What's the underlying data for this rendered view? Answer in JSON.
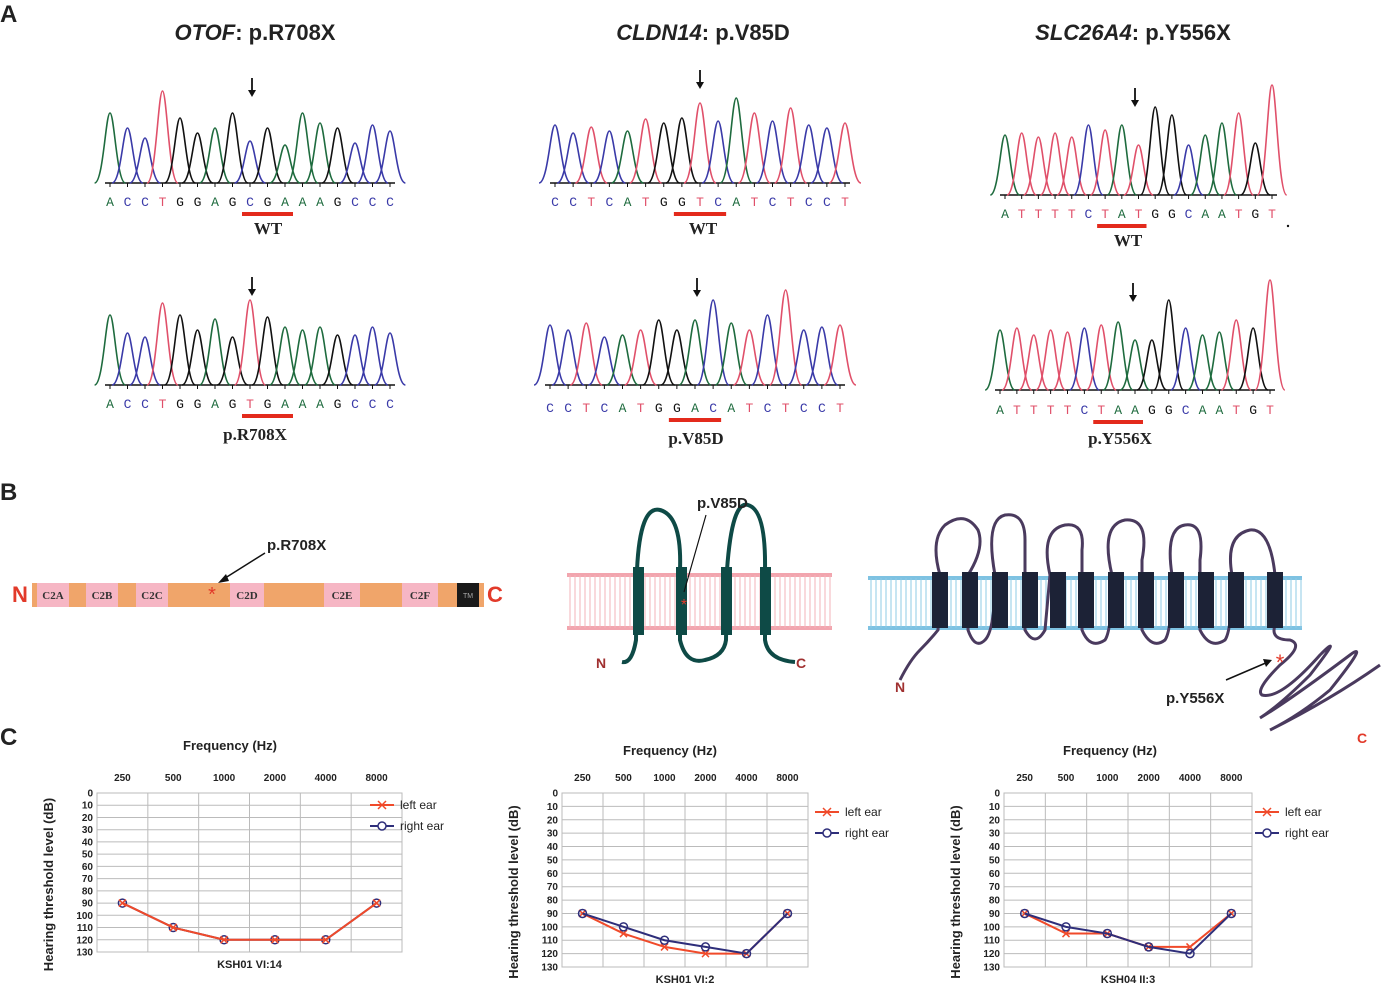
{
  "panels": {
    "a": "A",
    "b": "B",
    "c": "C"
  },
  "sequencing": [
    {
      "gene": "OTOF",
      "variant": ": p.R708X",
      "wt_seq": [
        "A",
        "C",
        "C",
        "T",
        "G",
        "G",
        "A",
        "G",
        "C",
        "G",
        "A",
        "A",
        "A",
        "G",
        "C",
        "C",
        "C"
      ],
      "wt_label": "WT",
      "mut_seq": [
        "A",
        "C",
        "C",
        "T",
        "G",
        "G",
        "A",
        "G",
        "T",
        "G",
        "A",
        "A",
        "A",
        "G",
        "C",
        "C",
        "C"
      ],
      "mut_label": "p.R708X"
    },
    {
      "gene": "CLDN14",
      "variant": ": p.V85D",
      "wt_seq": [
        "C",
        "C",
        "T",
        "C",
        "A",
        "T",
        "G",
        "G",
        "T",
        "C",
        "A",
        "T",
        "C",
        "T",
        "C",
        "C",
        "T"
      ],
      "wt_label": "WT",
      "mut_seq": [
        "C",
        "C",
        "T",
        "C",
        "A",
        "T",
        "G",
        "G",
        "A",
        "C",
        "A",
        "T",
        "C",
        "T",
        "C",
        "C",
        "T"
      ],
      "mut_label": "p.V85D"
    },
    {
      "gene": "SLC26A4",
      "variant": ": p.Y556X",
      "wt_seq": [
        "A",
        "T",
        "T",
        "T",
        "T",
        "C",
        "T",
        "A",
        "T",
        "G",
        "G",
        "C",
        "A",
        "A",
        "T",
        "G",
        "T"
      ],
      "wt_label": "WT",
      "mut_seq": [
        "A",
        "T",
        "T",
        "T",
        "T",
        "C",
        "T",
        "A",
        "A",
        "G",
        "G",
        "C",
        "A",
        "A",
        "T",
        "G",
        "T"
      ],
      "mut_label": "p.Y556X"
    }
  ],
  "protein": {
    "otof": {
      "n_label": "N",
      "c_label": "C",
      "domains": [
        "C2A",
        "C2B",
        "C2C",
        "C2D",
        "C2E",
        "C2F",
        "TM"
      ],
      "mutation": "p.R708X"
    },
    "cldn14": {
      "n_label": "N",
      "c_label": "C",
      "mutation": "p.V85D"
    },
    "slc26a4": {
      "n_label": "N",
      "c_label": "C",
      "mutation": "p.Y556X"
    }
  },
  "audiograms": {
    "x_title": "Frequency (Hz)",
    "y_title": "Hearing threshold level (dB)",
    "frequencies": [
      "250",
      "500",
      "1000",
      "2000",
      "4000",
      "8000"
    ],
    "y_ticks": [
      "0",
      "10",
      "20",
      "30",
      "40",
      "50",
      "60",
      "70",
      "80",
      "90",
      "100",
      "110",
      "120",
      "130"
    ],
    "legend_left": "left ear",
    "legend_right": "right ear",
    "colors": {
      "left": "#f04a2a",
      "right": "#2e2e7a"
    }
  },
  "chart_data": [
    {
      "type": "line",
      "title": "KSH01 VI:14",
      "xlabel": "Frequency (Hz)",
      "ylabel": "Hearing threshold level (dB)",
      "categories": [
        "250",
        "500",
        "1000",
        "2000",
        "4000",
        "8000"
      ],
      "ylim": [
        0,
        130
      ],
      "series": [
        {
          "name": "left ear",
          "values": [
            90,
            110,
            120,
            120,
            120,
            90
          ]
        },
        {
          "name": "right ear",
          "values": [
            90,
            110,
            120,
            120,
            120,
            90
          ]
        }
      ]
    },
    {
      "type": "line",
      "title": "KSH01 VI:2",
      "xlabel": "Frequency (Hz)",
      "ylabel": "Hearing threshold level (dB)",
      "categories": [
        "250",
        "500",
        "1000",
        "2000",
        "4000",
        "8000"
      ],
      "ylim": [
        0,
        130
      ],
      "series": [
        {
          "name": "left ear",
          "values": [
            90,
            105,
            115,
            120,
            120,
            90
          ]
        },
        {
          "name": "right ear",
          "values": [
            90,
            100,
            110,
            115,
            120,
            90
          ]
        }
      ]
    },
    {
      "type": "line",
      "title": "KSH04 II:3",
      "xlabel": "Frequency (Hz)",
      "ylabel": "Hearing threshold level (dB)",
      "categories": [
        "250",
        "500",
        "1000",
        "2000",
        "4000",
        "8000"
      ],
      "ylim": [
        0,
        130
      ],
      "series": [
        {
          "name": "left ear",
          "values": [
            90,
            105,
            105,
            115,
            115,
            90
          ]
        },
        {
          "name": "right ear",
          "values": [
            90,
            100,
            105,
            115,
            120,
            90
          ]
        }
      ]
    }
  ]
}
